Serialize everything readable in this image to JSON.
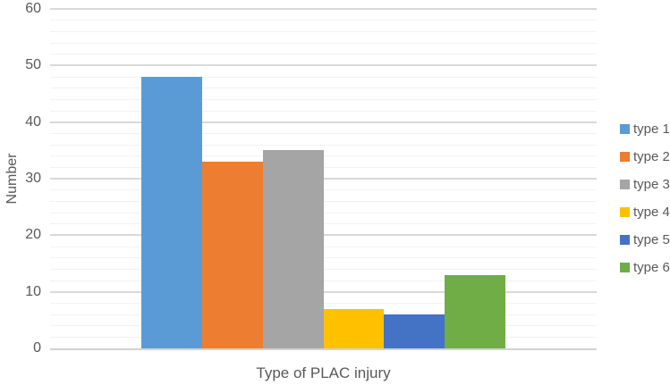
{
  "chart_data": {
    "type": "bar",
    "title": "",
    "xlabel": "Type of PLAC injury",
    "ylabel": "Number",
    "categories": [
      "Type of PLAC injury"
    ],
    "series": [
      {
        "name": "type 1",
        "values": [
          48
        ],
        "color": "#5B9BD5"
      },
      {
        "name": "type 2",
        "values": [
          33
        ],
        "color": "#ED7D31"
      },
      {
        "name": "type 3",
        "values": [
          35
        ],
        "color": "#A5A5A5"
      },
      {
        "name": "type 4",
        "values": [
          7
        ],
        "color": "#FFC000"
      },
      {
        "name": "type 5",
        "values": [
          6
        ],
        "color": "#4472C4"
      },
      {
        "name": "type 6",
        "values": [
          13
        ],
        "color": "#70AD47"
      }
    ],
    "ylim": [
      0,
      60
    ],
    "yticks": [
      0,
      10,
      20,
      30,
      40,
      50,
      60
    ],
    "minor_tick_unit": 2,
    "grid": "major+minor",
    "legend_position": "right",
    "colors": {
      "text": "#595959",
      "major_gridline": "#D9D9D9",
      "minor_gridline": "#F2F2F2",
      "axis_line": "#D2D2D2"
    }
  }
}
